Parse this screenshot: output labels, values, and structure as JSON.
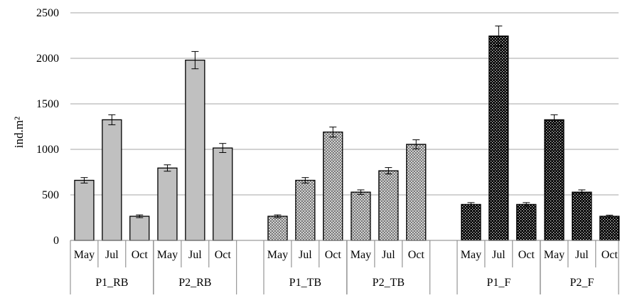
{
  "chart_data": {
    "type": "bar",
    "title": "",
    "xlabel": "",
    "ylabel": "ind.m²",
    "ylim": [
      0,
      2500
    ],
    "yticks": [
      0,
      500,
      1000,
      1500,
      2000,
      2500
    ],
    "grid": true,
    "legend": "none",
    "groups": [
      {
        "label": "P1_RB",
        "pattern": "solid-gray",
        "categories": [
          "May",
          "Jul",
          "Oct"
        ],
        "values": [
          660,
          1325,
          265
        ],
        "errors": [
          30,
          55,
          15
        ]
      },
      {
        "label": "P2_RB",
        "pattern": "solid-gray",
        "categories": [
          "May",
          "Jul",
          "Oct"
        ],
        "values": [
          795,
          1980,
          1015
        ],
        "errors": [
          35,
          95,
          50
        ]
      },
      {
        "label": "P1_TB",
        "pattern": "dotted-gray",
        "categories": [
          "May",
          "Jul",
          "Oct"
        ],
        "values": [
          265,
          660,
          1190
        ],
        "errors": [
          15,
          30,
          55
        ]
      },
      {
        "label": "P2_TB",
        "pattern": "dotted-gray",
        "categories": [
          "May",
          "Jul",
          "Oct"
        ],
        "values": [
          530,
          765,
          1055
        ],
        "errors": [
          25,
          35,
          50
        ]
      },
      {
        "label": "P1_F",
        "pattern": "dotted-black",
        "categories": [
          "May",
          "Jul",
          "Oct"
        ],
        "values": [
          395,
          2245,
          395
        ],
        "errors": [
          20,
          110,
          20
        ]
      },
      {
        "label": "P2_F",
        "pattern": "dotted-black",
        "categories": [
          "May",
          "Jul",
          "Oct"
        ],
        "values": [
          1325,
          530,
          265
        ],
        "errors": [
          55,
          25,
          12
        ]
      }
    ],
    "colors": {
      "solid_gray": "#c0c0c0",
      "dotted_gray_bg": "#7a7a7a",
      "dotted_black_bg": "#000000",
      "gridline": "#a6a6a6",
      "axis": "#808080"
    }
  }
}
